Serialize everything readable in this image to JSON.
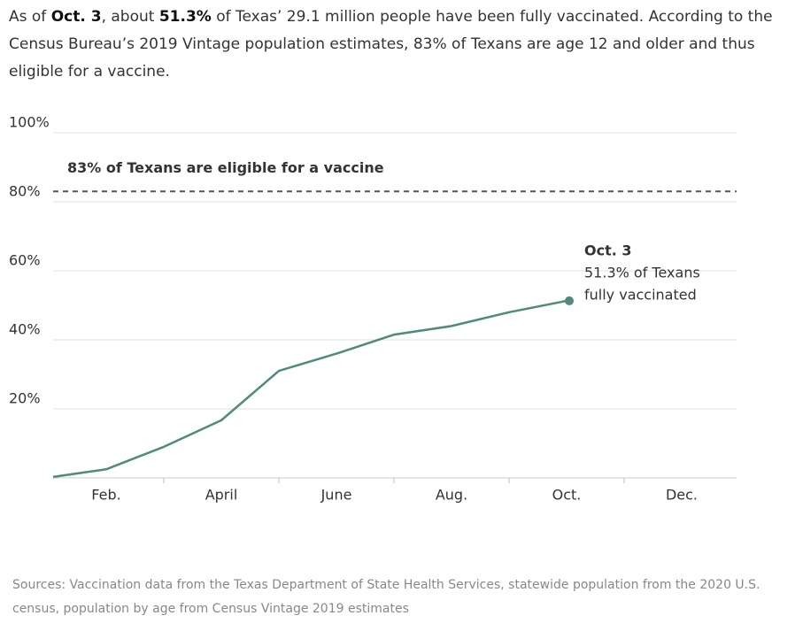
{
  "intro": [
    "As of ",
    "Oct. 3",
    ", about ",
    "51.3%",
    " of Texas’ 29.1 million people have been fully vaccinated. According to the Census Bureau’s 2019 Vintage population estimates, 83% of Texans are age 12 and older and thus eligible for a vaccine."
  ],
  "chart_data": {
    "type": "line",
    "categories": [
      null,
      "Feb.",
      null,
      "April",
      null,
      "June",
      null,
      "Aug.",
      null,
      "Oct.",
      null,
      "Dec."
    ],
    "series": [
      {
        "color": "#4e8a7e",
        "values": [
          0.3,
          2.5,
          9,
          16.7,
          31,
          36,
          41.5,
          44,
          48,
          51.3,
          null,
          null
        ]
      }
    ],
    "ylim": [
      0,
      100
    ],
    "yticks": [
      {
        "value": 20,
        "label": "20%"
      },
      {
        "value": 40,
        "label": "40%"
      },
      {
        "value": 60,
        "label": "60%"
      },
      {
        "value": 80,
        "label": "80%"
      },
      {
        "value": 100,
        "label": "100%"
      }
    ],
    "grid": true,
    "reference": {
      "value": 83,
      "label": "83% of Texans are eligible for a vaccine"
    },
    "annotation": [
      "Oct. 3",
      "51.3% of Texans",
      "fully vaccinated"
    ]
  },
  "source": "Sources: Vaccination data from the Texas Department of State Health Services, statewide population from the 2020 U.S. census, population by age from Census Vintage 2019 estimates"
}
